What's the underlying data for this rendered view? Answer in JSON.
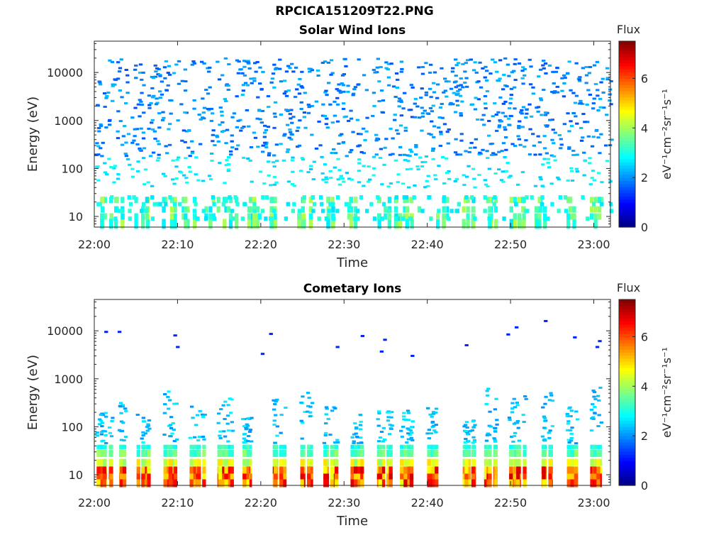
{
  "figure": {
    "title": "RPCICA151209T22.PNG"
  },
  "colorbar": {
    "title": "Flux",
    "ticks": [
      "0",
      "2",
      "4",
      "6"
    ],
    "range": [
      0,
      7.5
    ],
    "colormap": "jet"
  },
  "chart_data": [
    {
      "type": "heatmap",
      "title": "Solar Wind Ions",
      "xlabel": "Time",
      "ylabel": "Energy (eV)",
      "x_range": [
        "22:00",
        "23:02"
      ],
      "y_scale": "log",
      "ylim": [
        6,
        45000
      ],
      "x_ticks": [
        "22:00",
        "22:10",
        "22:20",
        "22:30",
        "22:40",
        "22:50",
        "23:00"
      ],
      "y_ticks": [
        "10",
        "100",
        "1000",
        "10000"
      ],
      "colorbar_label": "eV⁻¹cm⁻²sr⁻¹s⁻¹",
      "bursts_minutes": [
        1,
        2.3,
        5.5,
        8.7,
        11,
        13.8,
        16,
        19,
        21.5,
        25,
        28,
        31,
        34.5,
        36.5,
        38,
        41.5,
        44.5,
        47.5,
        50.5,
        53.5,
        57,
        60
      ],
      "low_energy_flux_peak": 4,
      "high_energy_scatter_flux": [
        1.5,
        2.5
      ],
      "high_energy_scatter_range_eV": [
        200,
        20000
      ]
    },
    {
      "type": "heatmap",
      "title": "Cometary Ions",
      "xlabel": "Time",
      "ylabel": "Energy (eV)",
      "x_range": [
        "22:00",
        "23:02"
      ],
      "y_scale": "log",
      "ylim": [
        6,
        45000
      ],
      "x_ticks": [
        "22:00",
        "22:10",
        "22:20",
        "22:30",
        "22:40",
        "22:50",
        "23:00"
      ],
      "y_ticks": [
        "10",
        "100",
        "1000",
        "10000"
      ],
      "colorbar_label": "eV⁻¹cm⁻²sr⁻¹s⁻¹",
      "bursts_minutes": [
        0.5,
        2.5,
        5.8,
        9,
        12,
        15.5,
        18.5,
        21.8,
        25,
        28.3,
        31.5,
        34.5,
        37.5,
        40.5,
        44.5,
        47.5,
        50.5,
        53.8,
        57,
        60
      ],
      "low_energy_flux_peak": 6.5,
      "stray_points": [
        [
          1.2,
          9500
        ],
        [
          2.8,
          9500
        ],
        [
          9.5,
          8000
        ],
        [
          9.8,
          4600
        ],
        [
          21,
          8600
        ],
        [
          20,
          3300
        ],
        [
          29,
          4600
        ],
        [
          32,
          7800
        ],
        [
          34.7,
          6500
        ],
        [
          34.3,
          3700
        ],
        [
          38,
          3000
        ],
        [
          44.5,
          5000
        ],
        [
          49.5,
          8400
        ],
        [
          50.5,
          11800
        ],
        [
          54,
          16000
        ],
        [
          57.5,
          7300
        ],
        [
          60.5,
          6100
        ],
        [
          60.2,
          4600
        ]
      ]
    }
  ]
}
